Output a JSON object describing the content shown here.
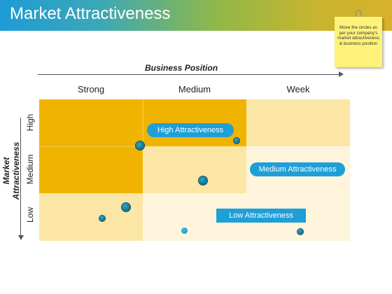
{
  "title": "Market Attractiveness",
  "note": "Move the circles as per your company's market attractiveness & business position",
  "x_axis_label": "Business Position",
  "y_axis_label": "Market Attractiveness",
  "columns": [
    "Strong",
    "Medium",
    "Week"
  ],
  "rows": [
    "High",
    "Medium",
    "Low"
  ],
  "zones": {
    "high": "High Attractiveness",
    "medium": "Medium Attractiveness",
    "low": "Low Attractiveness"
  },
  "colors": {
    "header_start": "#1e9bd7",
    "header_end": "#d9b12a",
    "high_zone": "#f0b400",
    "medium_zone": "#fce6a6",
    "low_zone": "#fef5dc",
    "label_blue": "#1f9fd8",
    "dot": "#0d6f8c",
    "note": "#fff27a"
  }
}
